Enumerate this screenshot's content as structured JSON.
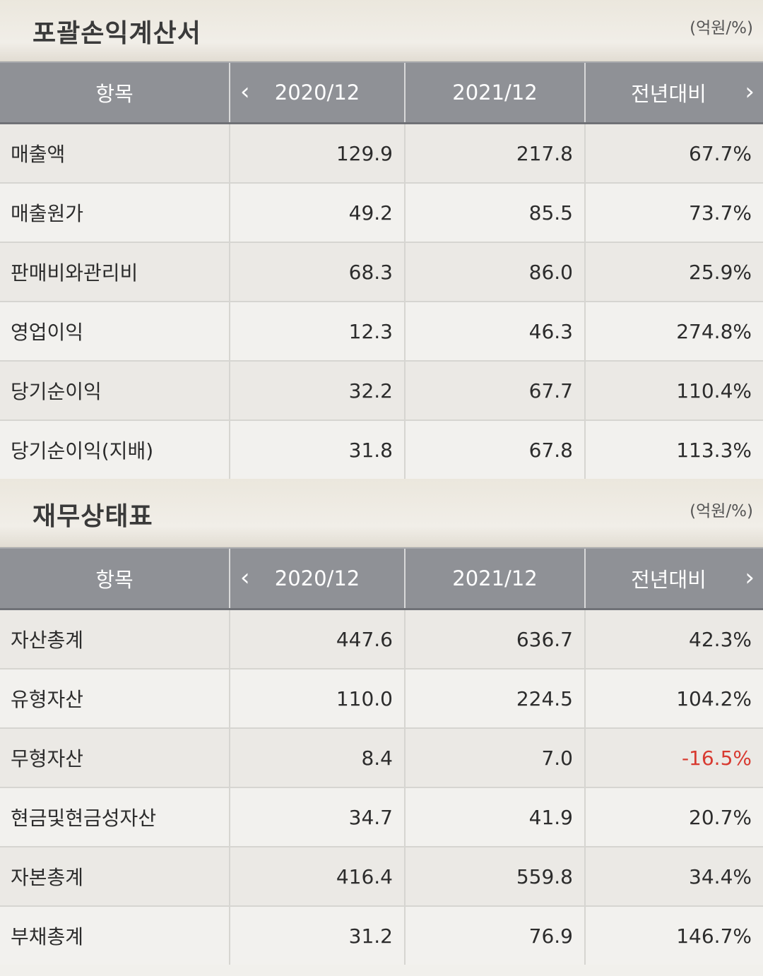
{
  "income": {
    "title": "포괄손익계산서",
    "unit": "(억원/%)",
    "headers": {
      "item": "항목",
      "col1": "2020/12",
      "col2": "2021/12",
      "col3": "전년대비",
      "prev_arrow": "‹",
      "next_arrow": "›"
    },
    "rows": [
      {
        "label": "매출액",
        "v1": "129.9",
        "v2": "217.8",
        "v3": "67.7%"
      },
      {
        "label": "매출원가",
        "v1": "49.2",
        "v2": "85.5",
        "v3": "73.7%"
      },
      {
        "label": "판매비와관리비",
        "v1": "68.3",
        "v2": "86.0",
        "v3": "25.9%"
      },
      {
        "label": "영업이익",
        "v1": "12.3",
        "v2": "46.3",
        "v3": "274.8%"
      },
      {
        "label": "당기순이익",
        "v1": "32.2",
        "v2": "67.7",
        "v3": "110.4%"
      },
      {
        "label": "당기순이익(지배)",
        "v1": "31.8",
        "v2": "67.8",
        "v3": "113.3%"
      }
    ]
  },
  "balance": {
    "title": "재무상태표",
    "unit": "(억원/%)",
    "headers": {
      "item": "항목",
      "col1": "2020/12",
      "col2": "2021/12",
      "col3": "전년대비",
      "prev_arrow": "‹",
      "next_arrow": "›"
    },
    "rows": [
      {
        "label": "자산총계",
        "v1": "447.6",
        "v2": "636.7",
        "v3": "42.3%"
      },
      {
        "label": "유형자산",
        "v1": "110.0",
        "v2": "224.5",
        "v3": "104.2%"
      },
      {
        "label": "무형자산",
        "v1": "8.4",
        "v2": "7.0",
        "v3": "-16.5%"
      },
      {
        "label": "현금및현금성자산",
        "v1": "34.7",
        "v2": "41.9",
        "v3": "20.7%"
      },
      {
        "label": "자본총계",
        "v1": "416.4",
        "v2": "559.8",
        "v3": "34.4%"
      },
      {
        "label": "부채총계",
        "v1": "31.2",
        "v2": "76.9",
        "v3": "146.7%"
      }
    ]
  },
  "colors": {
    "header_bg": "#8f9196",
    "negative": "#d83a30"
  }
}
